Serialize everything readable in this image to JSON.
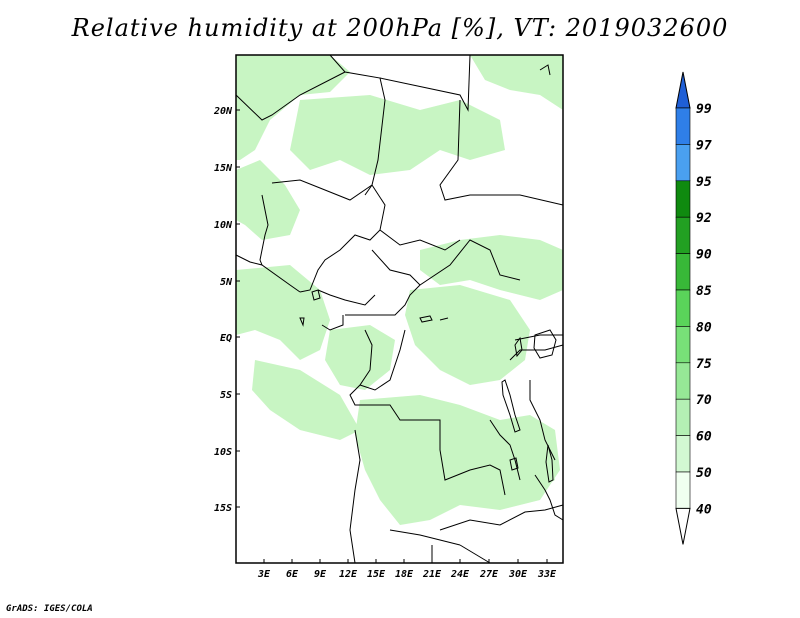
{
  "title": "Relative humidity at 200hPa [%], VT: 2019032600",
  "credit": "GrADS: IGES/COLA",
  "lat_ticks": [
    "20N",
    "15N",
    "10N",
    "5N",
    "EQ",
    "5S",
    "10S",
    "15S"
  ],
  "lon_ticks": [
    "3E",
    "6E",
    "9E",
    "12E",
    "15E",
    "18E",
    "21E",
    "24E",
    "27E",
    "30E",
    "33E"
  ],
  "colorbar": {
    "levels": [
      "99",
      "97",
      "95",
      "92",
      "90",
      "85",
      "80",
      "75",
      "70",
      "60",
      "50",
      "40"
    ],
    "colors": [
      "#1f5fd6",
      "#2f7fe8",
      "#4aa0f0",
      "#0f8a0f",
      "#22a022",
      "#38b838",
      "#5ad45a",
      "#78e078",
      "#96e896",
      "#b4f0b4",
      "#d2f8d2",
      "#f0fff0",
      "#ffffff"
    ]
  },
  "humidity_fill_color": "#c8f5c3"
}
